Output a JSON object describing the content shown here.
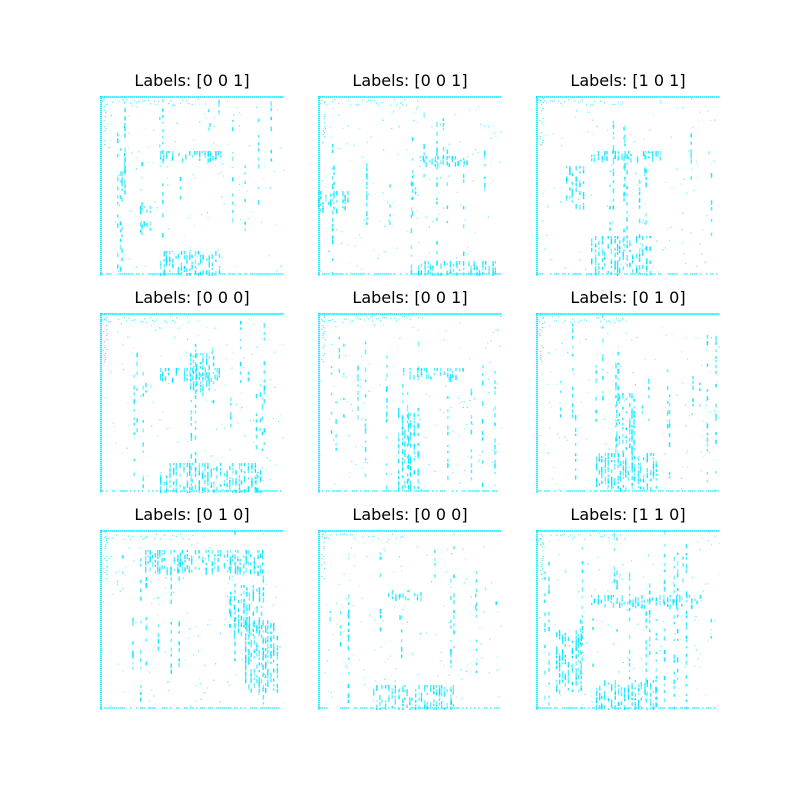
{
  "figure": {
    "panels": [
      {
        "title": "Labels: [0 0 1]"
      },
      {
        "title": "Labels: [0 0 1]"
      },
      {
        "title": "Labels: [1 0 1]"
      },
      {
        "title": "Labels: [0 0 0]"
      },
      {
        "title": "Labels: [0 0 1]"
      },
      {
        "title": "Labels: [0 1 0]"
      },
      {
        "title": "Labels: [0 1 0]"
      },
      {
        "title": "Labels: [0 0 0]"
      },
      {
        "title": "Labels: [1 1 0]"
      }
    ],
    "colors": {
      "pixel": "#00e5ff",
      "background": "#ffffff",
      "title": "#000000"
    }
  }
}
